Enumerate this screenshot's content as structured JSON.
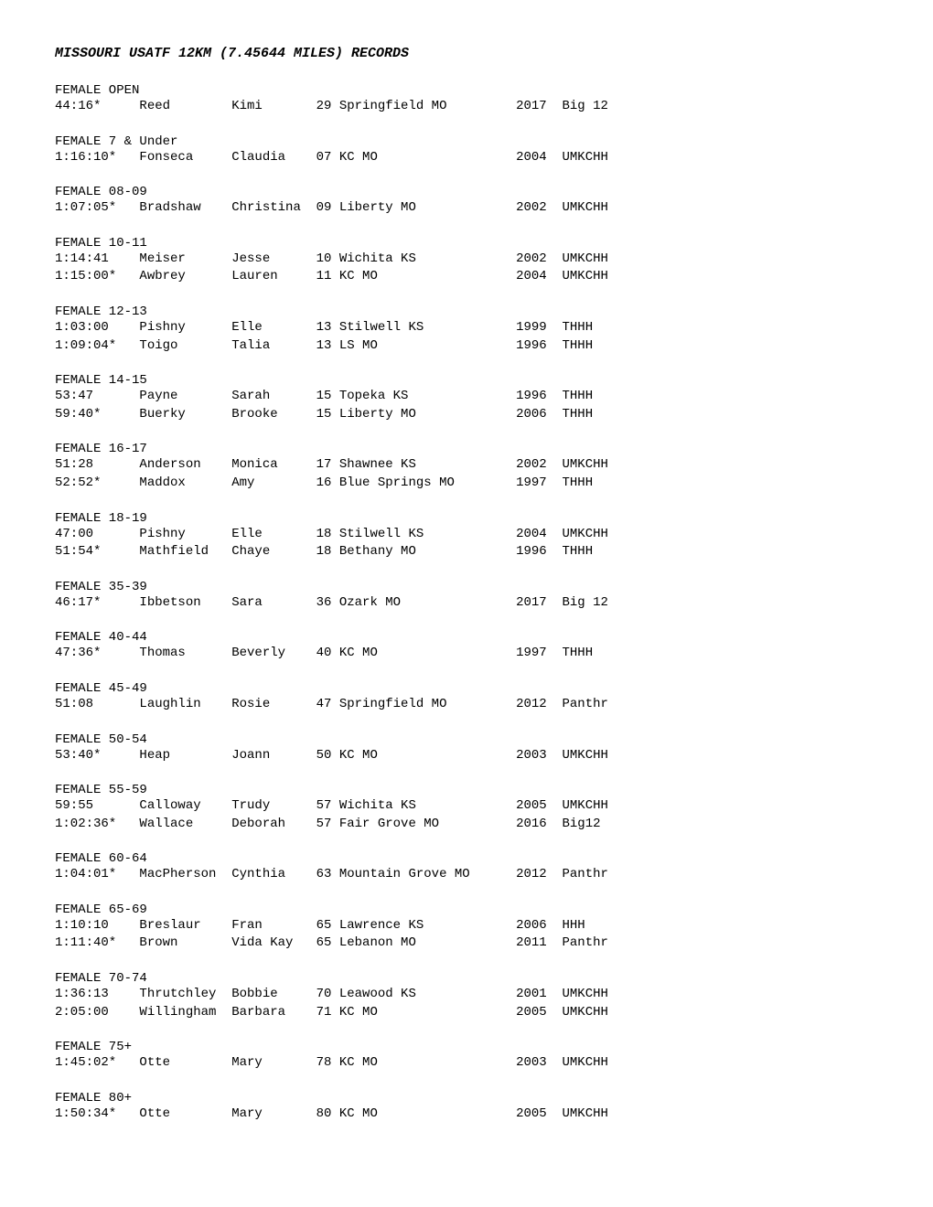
{
  "title": "MISSOURI USATF 12KM (7.45644 MILES) RECORDS",
  "categories": [
    {
      "name": "FEMALE OPEN",
      "records": [
        {
          "time": "44:16*",
          "lastName": "Reed",
          "firstName": "Kimi",
          "age": "29",
          "location": "Springfield MO",
          "year": "2017",
          "event": "Big 12"
        }
      ]
    },
    {
      "name": "FEMALE 7 & Under",
      "records": [
        {
          "time": "1:16:10*",
          "lastName": "Fonseca",
          "firstName": "Claudia",
          "age": "07",
          "location": "KC MO",
          "year": "2004",
          "event": "UMKCHH"
        }
      ]
    },
    {
      "name": "FEMALE 08-09",
      "records": [
        {
          "time": "1:07:05*",
          "lastName": "Bradshaw",
          "firstName": "Christina",
          "age": "09",
          "location": "Liberty MO",
          "year": "2002",
          "event": "UMKCHH"
        }
      ]
    },
    {
      "name": "FEMALE 10-11",
      "records": [
        {
          "time": "1:14:41",
          "lastName": "Meiser",
          "firstName": "Jesse",
          "age": "10",
          "location": "Wichita KS",
          "year": "2002",
          "event": "UMKCHH"
        },
        {
          "time": "1:15:00*",
          "lastName": "Awbrey",
          "firstName": "Lauren",
          "age": "11",
          "location": "KC MO",
          "year": "2004",
          "event": "UMKCHH"
        }
      ]
    },
    {
      "name": "FEMALE 12-13",
      "records": [
        {
          "time": "1:03:00",
          "lastName": "Pishny",
          "firstName": "Elle",
          "age": "13",
          "location": "Stilwell KS",
          "year": "1999",
          "event": "THHH"
        },
        {
          "time": "1:09:04*",
          "lastName": "Toigo",
          "firstName": "Talia",
          "age": "13",
          "location": "LS MO",
          "year": "1996",
          "event": "THHH"
        }
      ]
    },
    {
      "name": "FEMALE 14-15",
      "records": [
        {
          "time": "53:47",
          "lastName": "Payne",
          "firstName": "Sarah",
          "age": "15",
          "location": "Topeka KS",
          "year": "1996",
          "event": "THHH"
        },
        {
          "time": "59:40*",
          "lastName": "Buerky",
          "firstName": "Brooke",
          "age": "15",
          "location": "Liberty MO",
          "year": "2006",
          "event": "THHH"
        }
      ]
    },
    {
      "name": "FEMALE 16-17",
      "records": [
        {
          "time": "51:28",
          "lastName": "Anderson",
          "firstName": "Monica",
          "age": "17",
          "location": "Shawnee KS",
          "year": "2002",
          "event": "UMKCHH"
        },
        {
          "time": "52:52*",
          "lastName": "Maddox",
          "firstName": "Amy",
          "age": "16",
          "location": "Blue Springs MO",
          "year": "1997",
          "event": "THHH"
        }
      ]
    },
    {
      "name": "FEMALE 18-19",
      "records": [
        {
          "time": "47:00",
          "lastName": "Pishny",
          "firstName": "Elle",
          "age": "18",
          "location": "Stilwell KS",
          "year": "2004",
          "event": "UMKCHH"
        },
        {
          "time": "51:54*",
          "lastName": "Mathfield",
          "firstName": "Chaye",
          "age": "18",
          "location": "Bethany MO",
          "year": "1996",
          "event": "THHH"
        }
      ]
    },
    {
      "name": "FEMALE 35-39",
      "records": [
        {
          "time": "46:17*",
          "lastName": "Ibbetson",
          "firstName": "Sara",
          "age": "36",
          "location": "Ozark MO",
          "year": "2017",
          "event": "Big 12"
        }
      ]
    },
    {
      "name": "FEMALE 40-44",
      "records": [
        {
          "time": "47:36*",
          "lastName": "Thomas",
          "firstName": "Beverly",
          "age": "40",
          "location": "KC MO",
          "year": "1997",
          "event": "THHH"
        }
      ]
    },
    {
      "name": "FEMALE 45-49",
      "records": [
        {
          "time": "51:08",
          "lastName": "Laughlin",
          "firstName": "Rosie",
          "age": "47",
          "location": "Springfield MO",
          "year": "2012",
          "event": "Panthr"
        }
      ]
    },
    {
      "name": "FEMALE 50-54",
      "records": [
        {
          "time": "53:40*",
          "lastName": "Heap",
          "firstName": "Joann",
          "age": "50",
          "location": "KC MO",
          "year": "2003",
          "event": "UMKCHH"
        }
      ]
    },
    {
      "name": "FEMALE 55-59",
      "records": [
        {
          "time": "59:55",
          "lastName": "Calloway",
          "firstName": "Trudy",
          "age": "57",
          "location": "Wichita KS",
          "year": "2005",
          "event": "UMKCHH"
        },
        {
          "time": "1:02:36*",
          "lastName": "Wallace",
          "firstName": "Deborah",
          "age": "57",
          "location": "Fair Grove MO",
          "year": "2016",
          "event": "Big12"
        }
      ]
    },
    {
      "name": "FEMALE 60-64",
      "records": [
        {
          "time": "1:04:01*",
          "lastName": "MacPherson",
          "firstName": "Cynthia",
          "age": "63",
          "location": "Mountain Grove MO",
          "year": "2012",
          "event": "Panthr"
        }
      ]
    },
    {
      "name": "FEMALE 65-69",
      "records": [
        {
          "time": "1:10:10",
          "lastName": "Breslaur",
          "firstName": "Fran",
          "age": "65",
          "location": "Lawrence KS",
          "year": "2006",
          "event": "HHH"
        },
        {
          "time": "1:11:40*",
          "lastName": "Brown",
          "firstName": "Vida Kay",
          "age": "65",
          "location": "Lebanon MO",
          "year": "2011",
          "event": "Panthr"
        }
      ]
    },
    {
      "name": "FEMALE 70-74",
      "records": [
        {
          "time": "1:36:13",
          "lastName": "Thrutchley",
          "firstName": "Bobbie",
          "age": "70",
          "location": "Leawood KS",
          "year": "2001",
          "event": "UMKCHH"
        },
        {
          "time": "2:05:00",
          "lastName": "Willingham",
          "firstName": "Barbara",
          "age": "71",
          "location": "KC MO",
          "year": "2005",
          "event": "UMKCHH"
        }
      ]
    },
    {
      "name": "FEMALE 75+",
      "records": [
        {
          "time": "1:45:02*",
          "lastName": "Otte",
          "firstName": "Mary",
          "age": "78",
          "location": "KC MO",
          "year": "2003",
          "event": "UMKCHH"
        }
      ]
    },
    {
      "name": "FEMALE 80+",
      "records": [
        {
          "time": "1:50:34*",
          "lastName": "Otte",
          "firstName": "Mary",
          "age": "80",
          "location": "KC MO",
          "year": "2005",
          "event": "UMKCHH"
        }
      ]
    }
  ],
  "layout": {
    "col_time": 11,
    "col_lastName": 12,
    "col_firstName": 11,
    "col_age": 3,
    "col_location": 23,
    "col_year": 6
  }
}
